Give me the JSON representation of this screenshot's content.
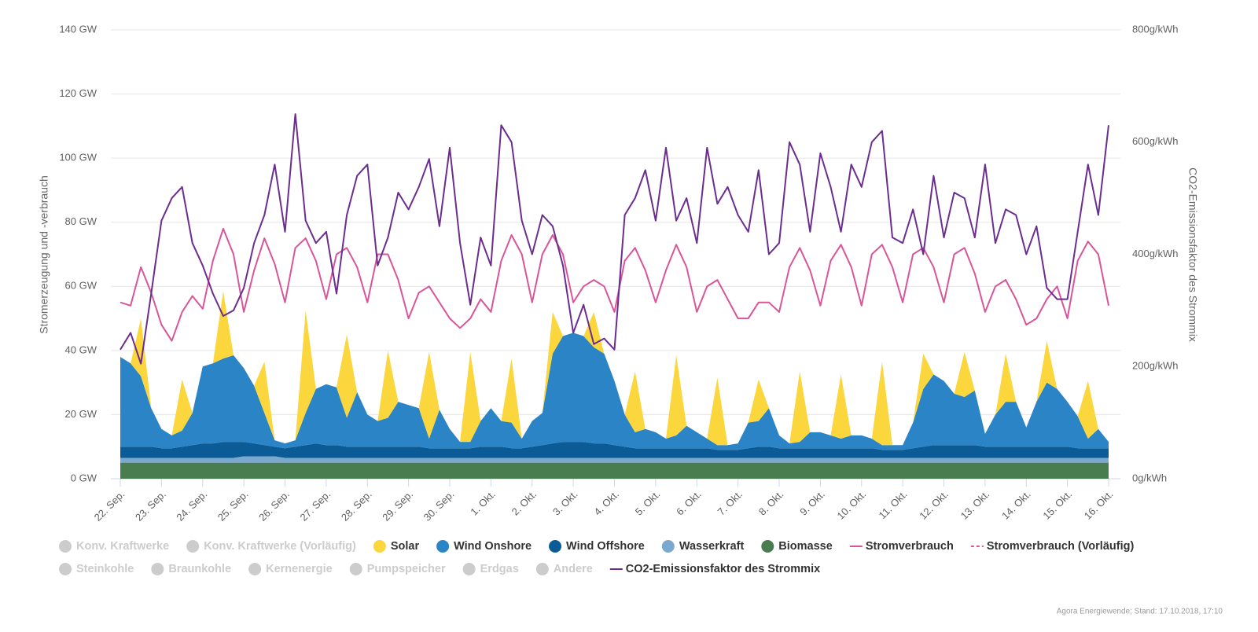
{
  "chart_data": {
    "type": "area",
    "y_title": "Stromerzeugung und -verbrauch",
    "y2_title": "CO2-Emissionsfaktor des Strommix",
    "credit": "Agora Energiewende; Stand: 17.10.2018, 17:10",
    "grid": true,
    "xlim": [
      0,
      24
    ],
    "ylim": [
      0,
      140
    ],
    "y2lim": [
      0,
      800
    ],
    "xticks": [
      {
        "value": 0,
        "label": "22. Sep."
      },
      {
        "value": 1,
        "label": "23. Sep."
      },
      {
        "value": 2,
        "label": "24. Sep."
      },
      {
        "value": 3,
        "label": "25. Sep."
      },
      {
        "value": 4,
        "label": "26. Sep."
      },
      {
        "value": 5,
        "label": "27. Sep."
      },
      {
        "value": 6,
        "label": "28. Sep."
      },
      {
        "value": 7,
        "label": "29. Sep."
      },
      {
        "value": 8,
        "label": "30. Sep."
      },
      {
        "value": 9,
        "label": "1. Okt."
      },
      {
        "value": 10,
        "label": "2. Okt."
      },
      {
        "value": 11,
        "label": "3. Okt."
      },
      {
        "value": 12,
        "label": "4. Okt."
      },
      {
        "value": 13,
        "label": "5. Okt."
      },
      {
        "value": 14,
        "label": "6. Okt."
      },
      {
        "value": 15,
        "label": "7. Okt."
      },
      {
        "value": 16,
        "label": "8. Okt."
      },
      {
        "value": 17,
        "label": "9. Okt."
      },
      {
        "value": 18,
        "label": "10. Okt."
      },
      {
        "value": 19,
        "label": "11. Okt."
      },
      {
        "value": 20,
        "label": "12. Okt."
      },
      {
        "value": 21,
        "label": "13. Okt."
      },
      {
        "value": 22,
        "label": "14. Okt."
      },
      {
        "value": 23,
        "label": "15. Okt."
      },
      {
        "value": 24,
        "label": "16. Okt."
      }
    ],
    "yticks": [
      {
        "value": 0,
        "label": "0 GW"
      },
      {
        "value": 20,
        "label": "20 GW"
      },
      {
        "value": 40,
        "label": "40 GW"
      },
      {
        "value": 60,
        "label": "60 GW"
      },
      {
        "value": 80,
        "label": "80 GW"
      },
      {
        "value": 100,
        "label": "100 GW"
      },
      {
        "value": 120,
        "label": "120 GW"
      },
      {
        "value": 140,
        "label": "140 GW"
      }
    ],
    "y2ticks": [
      {
        "value": 0,
        "label": "0g/kWh"
      },
      {
        "value": 200,
        "label": "200g/kWh"
      },
      {
        "value": 400,
        "label": "400g/kWh"
      },
      {
        "value": 600,
        "label": "600g/kWh"
      },
      {
        "value": 800,
        "label": "800g/kWh"
      }
    ],
    "x": [
      0,
      0.25,
      0.5,
      0.75,
      1,
      1.25,
      1.5,
      1.75,
      2,
      2.25,
      2.5,
      2.75,
      3,
      3.25,
      3.5,
      3.75,
      4,
      4.25,
      4.5,
      4.75,
      5,
      5.25,
      5.5,
      5.75,
      6,
      6.25,
      6.5,
      6.75,
      7,
      7.25,
      7.5,
      7.75,
      8,
      8.25,
      8.5,
      8.75,
      9,
      9.25,
      9.5,
      9.75,
      10,
      10.25,
      10.5,
      10.75,
      11,
      11.25,
      11.5,
      11.75,
      12,
      12.25,
      12.5,
      12.75,
      13,
      13.25,
      13.5,
      13.75,
      14,
      14.25,
      14.5,
      14.75,
      15,
      15.25,
      15.5,
      15.75,
      16,
      16.25,
      16.5,
      16.75,
      17,
      17.25,
      17.5,
      17.75,
      18,
      18.25,
      18.5,
      18.75,
      19,
      19.25,
      19.5,
      19.75,
      20,
      20.25,
      20.5,
      20.75,
      21,
      21.25,
      21.5,
      21.75,
      22,
      22.25,
      22.5,
      22.75,
      23,
      23.25,
      23.5,
      23.75,
      24
    ],
    "series": [
      {
        "name": "Solar",
        "type": "area",
        "color": "#fbd63c",
        "values": [
          0,
          0,
          18,
          0,
          0,
          0,
          16,
          0,
          0,
          0,
          21,
          0,
          0,
          0,
          16,
          0,
          0,
          0,
          32,
          0,
          0,
          0,
          26,
          0,
          0,
          0,
          21,
          0,
          0,
          0,
          27,
          0,
          0,
          0,
          28,
          0,
          0,
          0,
          20,
          0,
          0,
          0,
          13,
          0,
          0,
          0,
          11,
          0,
          0,
          0,
          19,
          0,
          0,
          0,
          25,
          0,
          0,
          0,
          21,
          0,
          0,
          0,
          13,
          0,
          0,
          0,
          22,
          0,
          0,
          0,
          20,
          0,
          0,
          0,
          26,
          0,
          0,
          0,
          11,
          0,
          0,
          0,
          14,
          0,
          0,
          0,
          15,
          0,
          0,
          0,
          13,
          0,
          0,
          0,
          18,
          0,
          0
        ]
      },
      {
        "name": "Wind Onshore",
        "type": "area",
        "color": "#2a84c5",
        "values": [
          28,
          26,
          22,
          12,
          6,
          4,
          5,
          10,
          24,
          25,
          26,
          27,
          23,
          18,
          10,
          2,
          1.5,
          2,
          10,
          17,
          19,
          18,
          9,
          17,
          10,
          8,
          9,
          14,
          13,
          12,
          3,
          12,
          6,
          2,
          2,
          8,
          12,
          8,
          8,
          3,
          8,
          10,
          28,
          33,
          34,
          33,
          30,
          28,
          20,
          10,
          5,
          6,
          5,
          3,
          4,
          7,
          5,
          3,
          1.5,
          1.5,
          2,
          8,
          8,
          12,
          4,
          1.5,
          2,
          5,
          5,
          4,
          3,
          4,
          4,
          3,
          1.5,
          1.5,
          1.5,
          8,
          18,
          22,
          20,
          16,
          15,
          17,
          4,
          10,
          14,
          14,
          6,
          14,
          20,
          18,
          14,
          10,
          3,
          6,
          2
        ]
      },
      {
        "name": "Wind Offshore",
        "type": "area",
        "color": "#0b5c96",
        "values": [
          3.5,
          3.5,
          3.5,
          3.5,
          3,
          3,
          3.5,
          4,
          4.5,
          4.5,
          5,
          5,
          4.5,
          4,
          3.5,
          3,
          3,
          3.5,
          4,
          4.5,
          4,
          4,
          3.5,
          3.5,
          3.5,
          3.5,
          3.5,
          3.5,
          3.5,
          3.5,
          3,
          3,
          3,
          3,
          3,
          3.5,
          3.5,
          3.5,
          3,
          3,
          3.5,
          4,
          4.5,
          5,
          5,
          5,
          4.5,
          4.5,
          4,
          3.5,
          3,
          3,
          3,
          3,
          3,
          3,
          3,
          3,
          2.5,
          2.5,
          2.5,
          3,
          3.5,
          3.5,
          3,
          3,
          3,
          3,
          3,
          3,
          3,
          3,
          3,
          3,
          2.5,
          2.5,
          2.5,
          3,
          3.5,
          4,
          4,
          4,
          4,
          4,
          3.5,
          3.5,
          3.5,
          3.5,
          3.5,
          3.5,
          3.5,
          3.5,
          3.5,
          3,
          3,
          3,
          3
        ]
      },
      {
        "name": "Wasserkraft",
        "type": "area",
        "color": "#7ba8cf",
        "values": [
          1.5,
          1.5,
          1.5,
          1.5,
          1.5,
          1.5,
          1.5,
          1.5,
          1.5,
          1.5,
          1.5,
          1.5,
          2,
          2,
          2,
          2,
          1.5,
          1.5,
          1.5,
          1.5,
          1.5,
          1.5,
          1.5,
          1.5,
          1.5,
          1.5,
          1.5,
          1.5,
          1.5,
          1.5,
          1.5,
          1.5,
          1.5,
          1.5,
          1.5,
          1.5,
          1.5,
          1.5,
          1.5,
          1.5,
          1.5,
          1.5,
          1.5,
          1.5,
          1.5,
          1.5,
          1.5,
          1.5,
          1.5,
          1.5,
          1.5,
          1.5,
          1.5,
          1.5,
          1.5,
          1.5,
          1.5,
          1.5,
          1.5,
          1.5,
          1.5,
          1.5,
          1.5,
          1.5,
          1.5,
          1.5,
          1.5,
          1.5,
          1.5,
          1.5,
          1.5,
          1.5,
          1.5,
          1.5,
          1.5,
          1.5,
          1.5,
          1.5,
          1.5,
          1.5,
          1.5,
          1.5,
          1.5,
          1.5,
          1.5,
          1.5,
          1.5,
          1.5,
          1.5,
          1.5,
          1.5,
          1.5,
          1.5,
          1.5,
          1.5,
          1.5,
          1.5
        ]
      },
      {
        "name": "Biomasse",
        "type": "area",
        "color": "#497d50",
        "values": [
          5,
          5,
          5,
          5,
          5,
          5,
          5,
          5,
          5,
          5,
          5,
          5,
          5,
          5,
          5,
          5,
          5,
          5,
          5,
          5,
          5,
          5,
          5,
          5,
          5,
          5,
          5,
          5,
          5,
          5,
          5,
          5,
          5,
          5,
          5,
          5,
          5,
          5,
          5,
          5,
          5,
          5,
          5,
          5,
          5,
          5,
          5,
          5,
          5,
          5,
          5,
          5,
          5,
          5,
          5,
          5,
          5,
          5,
          5,
          5,
          5,
          5,
          5,
          5,
          5,
          5,
          5,
          5,
          5,
          5,
          5,
          5,
          5,
          5,
          5,
          5,
          5,
          5,
          5,
          5,
          5,
          5,
          5,
          5,
          5,
          5,
          5,
          5,
          5,
          5,
          5,
          5,
          5,
          5,
          5,
          5,
          5
        ]
      },
      {
        "name": "Stromverbrauch",
        "type": "line",
        "color": "#d9559a",
        "values": [
          55,
          54,
          66,
          58,
          48,
          43,
          52,
          57,
          53,
          68,
          78,
          70,
          52,
          65,
          75,
          67,
          55,
          72,
          75,
          68,
          56,
          70,
          72,
          66,
          55,
          70,
          70,
          62,
          50,
          58,
          60,
          55,
          50,
          47,
          50,
          56,
          52,
          68,
          76,
          70,
          55,
          70,
          76,
          70,
          55,
          60,
          62,
          60,
          52,
          68,
          72,
          65,
          55,
          65,
          73,
          66,
          52,
          60,
          62,
          56,
          50,
          50,
          55,
          55,
          52,
          66,
          72,
          65,
          54,
          68,
          73,
          66,
          54,
          70,
          73,
          66,
          55,
          70,
          72,
          66,
          55,
          70,
          72,
          64,
          52,
          60,
          62,
          56,
          48,
          50,
          56,
          60,
          50,
          68,
          74,
          70,
          54
        ]
      },
      {
        "name": "CO2-Emissionsfaktor des Strommix",
        "type": "line",
        "axis": "y2",
        "color": "#6b2d8e",
        "values": [
          230,
          260,
          205,
          330,
          460,
          500,
          520,
          420,
          380,
          330,
          290,
          300,
          340,
          420,
          470,
          560,
          440,
          650,
          460,
          420,
          440,
          330,
          470,
          540,
          560,
          380,
          430,
          510,
          480,
          520,
          570,
          450,
          590,
          420,
          310,
          430,
          380,
          630,
          600,
          460,
          400,
          470,
          450,
          380,
          260,
          310,
          240,
          250,
          230,
          470,
          500,
          550,
          460,
          590,
          460,
          500,
          420,
          590,
          490,
          520,
          470,
          440,
          550,
          400,
          420,
          600,
          560,
          440,
          580,
          520,
          440,
          560,
          520,
          600,
          620,
          430,
          420,
          480,
          400,
          540,
          430,
          510,
          500,
          430,
          560,
          420,
          480,
          470,
          400,
          450,
          340,
          320,
          320,
          440,
          560,
          470,
          630
        ]
      }
    ],
    "legend_entries": [
      {
        "name": "Konv. Kraftwerke",
        "color": "#cccccc",
        "symbol": "circle"
      },
      {
        "name": "Konv. Kraftwerke (Vorläufig)",
        "color": "#cccccc",
        "symbol": "circle"
      },
      {
        "name": "Stromverbrauch (Vorläufig)",
        "color": "#d9559a",
        "symbol": "dash"
      },
      {
        "name": "Steinkohle",
        "color": "#cccccc",
        "symbol": "circle"
      },
      {
        "name": "Braunkohle",
        "color": "#cccccc",
        "symbol": "circle"
      },
      {
        "name": "Kernenergie",
        "color": "#cccccc",
        "symbol": "circle"
      },
      {
        "name": "Pumpspeicher",
        "color": "#cccccc",
        "symbol": "circle"
      },
      {
        "name": "Erdgas",
        "color": "#cccccc",
        "symbol": "circle"
      },
      {
        "name": "Andere",
        "color": "#cccccc",
        "symbol": "circle"
      }
    ]
  }
}
